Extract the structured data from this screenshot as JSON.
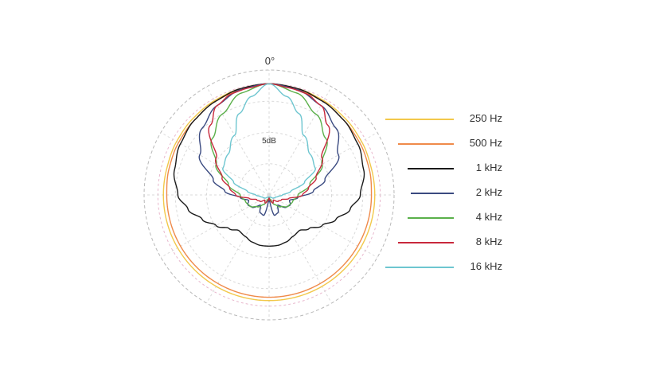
{
  "chart_data": {
    "type": "polar",
    "title": "",
    "angle_labels": {
      "top": "0°"
    },
    "radial_label": "5dB",
    "grid": true,
    "legend_position": "right",
    "series": [
      {
        "name": "250 Hz",
        "color": "#f2c84b",
        "angles": [
          0,
          15,
          30,
          45,
          60,
          75,
          90,
          105,
          120,
          135,
          150,
          165,
          180
        ],
        "values": [
          1.0,
          0.99,
          0.98,
          0.97,
          0.96,
          0.95,
          0.95,
          0.95,
          0.95,
          0.95,
          0.95,
          0.95,
          0.95
        ]
      },
      {
        "name": "500 Hz",
        "color": "#ef8a4a",
        "angles": [
          0,
          15,
          30,
          45,
          60,
          75,
          90,
          105,
          120,
          135,
          150,
          165,
          180
        ],
        "values": [
          1.0,
          0.98,
          0.97,
          0.95,
          0.94,
          0.93,
          0.92,
          0.92,
          0.92,
          0.92,
          0.92,
          0.92,
          0.92
        ]
      },
      {
        "name": "1 kHz",
        "color": "#1a1a1a",
        "angles": [
          0,
          15,
          30,
          45,
          60,
          75,
          90,
          100,
          110,
          120,
          130,
          140,
          150,
          160,
          170,
          180
        ],
        "values": [
          1.0,
          0.99,
          0.97,
          0.95,
          0.92,
          0.88,
          0.82,
          0.74,
          0.64,
          0.55,
          0.47,
          0.42,
          0.43,
          0.45,
          0.46,
          0.46
        ]
      },
      {
        "name": "2 kHz",
        "color": "#3a4a80",
        "angles": [
          0,
          15,
          30,
          45,
          60,
          75,
          85,
          95,
          105,
          115,
          125,
          140,
          155,
          165,
          175,
          180
        ],
        "values": [
          1.0,
          0.98,
          0.93,
          0.85,
          0.72,
          0.52,
          0.4,
          0.26,
          0.19,
          0.21,
          0.19,
          0.12,
          0.18,
          0.19,
          0.06,
          0.03
        ]
      },
      {
        "name": "4 kHz",
        "color": "#5ab04a",
        "angles": [
          0,
          15,
          30,
          45,
          60,
          75,
          90,
          105,
          120,
          135,
          150,
          165,
          180
        ],
        "values": [
          1.0,
          0.95,
          0.84,
          0.72,
          0.55,
          0.38,
          0.26,
          0.22,
          0.2,
          0.15,
          0.1,
          0.04,
          0.02
        ]
      },
      {
        "name": "8 kHz",
        "color": "#c8283c",
        "angles": [
          0,
          10,
          20,
          30,
          40,
          55,
          70,
          80,
          90,
          100,
          110,
          125,
          140,
          155,
          170,
          180
        ],
        "values": [
          1.0,
          0.98,
          0.97,
          0.93,
          0.82,
          0.58,
          0.45,
          0.36,
          0.3,
          0.18,
          0.12,
          0.1,
          0.06,
          0.08,
          0.05,
          0.02
        ]
      },
      {
        "name": "16 kHz",
        "color": "#6ec6d0",
        "angles": [
          0,
          10,
          20,
          30,
          45,
          60,
          70,
          80,
          90,
          100,
          110,
          125,
          140,
          155,
          170,
          180
        ],
        "values": [
          1.0,
          0.9,
          0.78,
          0.62,
          0.52,
          0.48,
          0.34,
          0.2,
          0.12,
          0.08,
          0.06,
          0.05,
          0.03,
          0.02,
          0.02,
          0.02
        ]
      }
    ]
  },
  "legend": {
    "items": [
      {
        "label": "250 Hz"
      },
      {
        "label": "500 Hz"
      },
      {
        "label": "1 kHz"
      },
      {
        "label": "2 kHz"
      },
      {
        "label": "4 kHz"
      },
      {
        "label": "8 kHz"
      },
      {
        "label": "16 kHz"
      }
    ]
  }
}
